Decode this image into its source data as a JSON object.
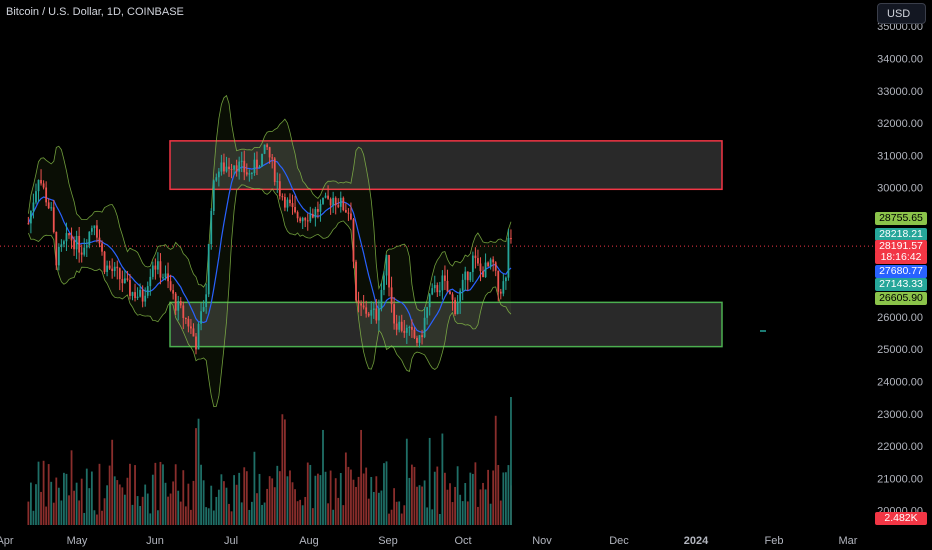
{
  "header": {
    "title": "Bitcoin / U.S. Dollar, 1D, COINBASE",
    "currency_button": "USD"
  },
  "colors": {
    "background": "#000000",
    "up": "#26a69a",
    "down": "#ef5350",
    "resistance_box": "#f23645",
    "support_box": "#4caf50",
    "band": "#8bc34a",
    "basis": "#2962ff"
  },
  "price_tags": {
    "upper_band": "28755.65",
    "upper_mid": "28218.21",
    "last_price": "28191.57",
    "countdown": "18:16:42",
    "basis": "27680.77",
    "lower_mid": "27143.33",
    "lower_band": "26605.90",
    "volume": "2.482K"
  },
  "chart_data": {
    "type": "candlestick",
    "title": "Bitcoin / U.S. Dollar, 1D, COINBASE",
    "y_axis": {
      "range": [
        19800,
        35100
      ],
      "ticks": [
        "35000.00",
        "34000.00",
        "33000.00",
        "32000.00",
        "31000.00",
        "30000.00",
        "29000.00",
        "28000.00",
        "27000.00",
        "26000.00",
        "25000.00",
        "24000.00",
        "23000.00",
        "22000.00",
        "21000.00",
        "20000.00"
      ]
    },
    "x_axis": {
      "ticks": [
        "Apr",
        "May",
        "Jun",
        "Jul",
        "Aug",
        "Sep",
        "Oct",
        "Nov",
        "Dec",
        "2024",
        "Feb",
        "Mar"
      ]
    },
    "zones": [
      {
        "name": "resistance",
        "from": 29950,
        "to": 31450
      },
      {
        "name": "support",
        "from": 25080,
        "to": 26450
      }
    ],
    "current_price": 28191.57,
    "price_path": [
      {
        "date": "Apr 10",
        "close": 28900
      },
      {
        "date": "Apr 14",
        "close": 30400
      },
      {
        "date": "Apr 19",
        "close": 29200
      },
      {
        "date": "Apr 21",
        "close": 27800
      },
      {
        "date": "Apr 26",
        "close": 28500
      },
      {
        "date": "May 1",
        "close": 28100
      },
      {
        "date": "May 6",
        "close": 29000
      },
      {
        "date": "May 10",
        "close": 27600
      },
      {
        "date": "May 15",
        "close": 27300
      },
      {
        "date": "May 20",
        "close": 26800
      },
      {
        "date": "May 25",
        "close": 26600
      },
      {
        "date": "May 29",
        "close": 27700
      },
      {
        "date": "Jun 3",
        "close": 27200
      },
      {
        "date": "Jun 7",
        "close": 26400
      },
      {
        "date": "Jun 12",
        "close": 25800
      },
      {
        "date": "Jun 15",
        "close": 25200
      },
      {
        "date": "Jun 19",
        "close": 26800
      },
      {
        "date": "Jun 21",
        "close": 29500
      },
      {
        "date": "Jun 23",
        "close": 30500
      },
      {
        "date": "Jun 30",
        "close": 30800
      },
      {
        "date": "Jul 6",
        "close": 30400
      },
      {
        "date": "Jul 13",
        "close": 31200
      },
      {
        "date": "Jul 18",
        "close": 29900
      },
      {
        "date": "Jul 24",
        "close": 29100
      },
      {
        "date": "Jul 31",
        "close": 29200
      },
      {
        "date": "Aug 8",
        "close": 29700
      },
      {
        "date": "Aug 15",
        "close": 29200
      },
      {
        "date": "Aug 17",
        "close": 26300
      },
      {
        "date": "Aug 25",
        "close": 26050
      },
      {
        "date": "Aug 29",
        "close": 27700
      },
      {
        "date": "Sep 1",
        "close": 25900
      },
      {
        "date": "Sep 11",
        "close": 25200
      },
      {
        "date": "Sep 15",
        "close": 26600
      },
      {
        "date": "Sep 20",
        "close": 27100
      },
      {
        "date": "Sep 25",
        "close": 26300
      },
      {
        "date": "Oct 2",
        "close": 27800
      },
      {
        "date": "Oct 5",
        "close": 27400
      },
      {
        "date": "Oct 10",
        "close": 27600
      },
      {
        "date": "Oct 12",
        "close": 26800
      },
      {
        "date": "Oct 15",
        "close": 27100
      },
      {
        "date": "Oct 16",
        "close": 28500
      },
      {
        "date": "Oct 17",
        "close": 28191.57
      }
    ]
  }
}
